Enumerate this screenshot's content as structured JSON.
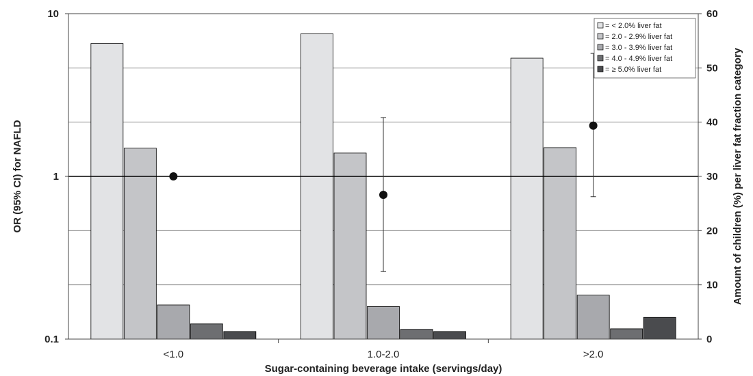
{
  "chart_data": {
    "type": "bar",
    "categories": [
      "<1.0",
      "1.0-2.0",
      ">2.0"
    ],
    "xlabel": "Sugar-containing beverage intake (servings/day)",
    "ylabel_left": "OR (95% CI) for NAFLD",
    "ylabel_right": "Amount of children (%) per liver fat fraction category",
    "left_axis": {
      "scale": "log",
      "range": [
        0.1,
        10
      ],
      "ticks": [
        "10",
        "1",
        "0.1"
      ],
      "tick_values": [
        10,
        1,
        0.1
      ]
    },
    "right_axis": {
      "range": [
        0,
        60
      ],
      "ticks": [
        "60",
        "50",
        "40",
        "30",
        "20",
        "10",
        "0"
      ],
      "tick_values": [
        60,
        50,
        40,
        30,
        20,
        10,
        0
      ]
    },
    "grid": true,
    "reference_line": 1,
    "legend_position": "top-right",
    "series": [
      {
        "name": "= < 2.0% liver fat",
        "color": "#e2e3e5",
        "values": [
          54.5,
          56.3,
          51.8
        ]
      },
      {
        "name": "= 2.0 - 2.9% liver fat",
        "color": "#c4c5c8",
        "values": [
          35.2,
          34.3,
          35.3
        ]
      },
      {
        "name": "= 3.0 - 3.9% liver fat",
        "color": "#a8a9ad",
        "values": [
          6.3,
          6.0,
          8.1
        ]
      },
      {
        "name": "= 4.0 - 4.9% liver fat",
        "color": "#6d6e71",
        "values": [
          2.8,
          1.8,
          1.9
        ]
      },
      {
        "name": "= ≥ 5.0% liver fat",
        "color": "#4a4b4e",
        "values": [
          1.4,
          1.4,
          4.0
        ]
      }
    ],
    "odds_ratios": [
      {
        "category": "<1.0",
        "or": 1.0,
        "ci_low": null,
        "ci_high": null
      },
      {
        "category": "1.0-2.0",
        "or": 0.77,
        "ci_low": 0.26,
        "ci_high": 2.3
      },
      {
        "category": ">2.0",
        "or": 2.05,
        "ci_low": 0.75,
        "ci_high": 5.7
      }
    ]
  }
}
